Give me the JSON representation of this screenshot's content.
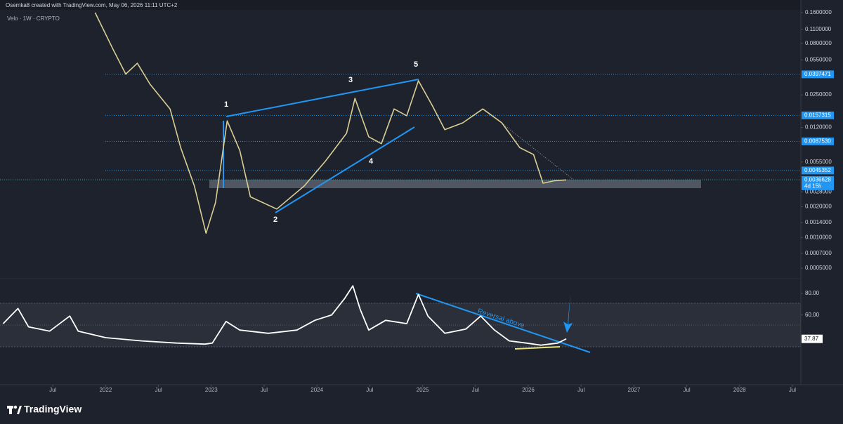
{
  "header": {
    "credit": "Osemka8 created with TradingView.com, May 06, 2026 11:11 UTC+2",
    "symbol": "Velo · 1W · CRYPTO"
  },
  "footer": {
    "brand": "TradingView"
  },
  "chart_data": [
    {
      "type": "line",
      "log_scale": true,
      "color": "#d9cf94",
      "x": [
        2021.9,
        2022.07,
        2022.19,
        2022.3,
        2022.42,
        2022.61,
        2022.71,
        2022.84,
        2022.95,
        2023.04,
        2023.15,
        2023.27,
        2023.37,
        2023.62,
        2023.88,
        2024.08,
        2024.28,
        2024.36,
        2024.49,
        2024.61,
        2024.73,
        2024.85,
        2024.96,
        2025.09,
        2025.21,
        2025.38,
        2025.57,
        2025.75,
        2025.92,
        2026.05,
        2026.14,
        2026.25,
        2026.36
      ],
      "values": [
        0.16,
        0.07,
        0.04,
        0.051,
        0.0318,
        0.0182,
        0.0076,
        0.0032,
        0.0011,
        0.0022,
        0.0139,
        0.0071,
        0.0025,
        0.0019,
        0.0032,
        0.0056,
        0.0105,
        0.0231,
        0.0097,
        0.0083,
        0.0182,
        0.0156,
        0.0344,
        0.0198,
        0.0114,
        0.0133,
        0.0182,
        0.0133,
        0.0076,
        0.0065,
        0.0034,
        0.0036,
        0.0036628
      ],
      "xlim": [
        2021,
        2028.58
      ],
      "xticks": [
        {
          "value": 2021.5,
          "label": "Jul"
        },
        2022,
        {
          "value": 2022.5,
          "label": "Jul"
        },
        2023,
        {
          "value": 2023.5,
          "label": "Jul"
        },
        2024,
        {
          "value": 2024.5,
          "label": "Jul"
        },
        2025,
        {
          "value": 2025.5,
          "label": "Jul"
        },
        2026,
        {
          "value": 2026.5,
          "label": "Jul"
        },
        2027,
        {
          "value": 2027.5,
          "label": "Jul"
        },
        2028,
        {
          "value": 2028.5,
          "label": "Jul"
        }
      ],
      "ylim": [
        0.000407,
        0.2128
      ],
      "yticks": [
        {
          "value": 0.16,
          "label": "0.1600000"
        },
        {
          "value": 0.11,
          "label": "0.1100000"
        },
        {
          "value": 0.08,
          "label": "0.0800000"
        },
        {
          "value": 0.055,
          "label": "0.0550000"
        },
        {
          "value": 0.025,
          "label": "0.0250000"
        },
        {
          "value": 0.012,
          "label": "0.0120000"
        },
        {
          "value": 0.0055,
          "label": "0.0055000"
        },
        {
          "value": 0.0028,
          "label": "0.0028000"
        },
        {
          "value": 0.002,
          "label": "0.0020000"
        },
        {
          "value": 0.0014,
          "label": "0.0014000"
        },
        {
          "value": 0.001,
          "label": "0.0010000"
        },
        {
          "value": 0.0007,
          "label": "0.0007000"
        },
        {
          "value": 0.0005,
          "label": "0.0005000"
        }
      ],
      "levels": [
        0.0397471,
        0.0157315,
        {
          "value": 0.008753,
          "label": "0.0087530"
        },
        0.0045352
      ],
      "level_color": "#2196f3",
      "countdown": "4d 15h",
      "wave_labels": [
        "1",
        "2",
        "3",
        "4",
        "5"
      ]
    },
    {
      "type": "line",
      "color": "#ffffff",
      "x": [
        2021.03,
        2021.17,
        2021.27,
        2021.47,
        2021.66,
        2021.74,
        2022.0,
        2022.34,
        2022.67,
        2022.94,
        2023.01,
        2023.14,
        2023.27,
        2023.54,
        2023.81,
        2023.98,
        2024.14,
        2024.26,
        2024.34,
        2024.41,
        2024.49,
        2024.65,
        2024.85,
        2024.96,
        2025.05,
        2025.21,
        2025.41,
        2025.55,
        2025.68,
        2025.82,
        2025.98,
        2026.12,
        2026.28,
        2026.36
      ],
      "values": [
        52,
        66,
        49,
        45,
        59,
        45,
        39,
        36,
        34,
        33,
        34,
        54,
        46,
        43,
        46,
        55,
        60,
        75,
        87,
        65,
        46,
        55,
        52,
        79,
        59,
        43,
        47,
        59,
        46,
        36,
        34,
        32,
        34,
        37.87
      ],
      "ylim": [
        -2.6,
        91.6
      ],
      "yticks": [
        {
          "value": 80,
          "label": "80.00"
        },
        {
          "value": 60,
          "label": "60.00"
        }
      ],
      "annotation": "Reversal above"
    }
  ]
}
